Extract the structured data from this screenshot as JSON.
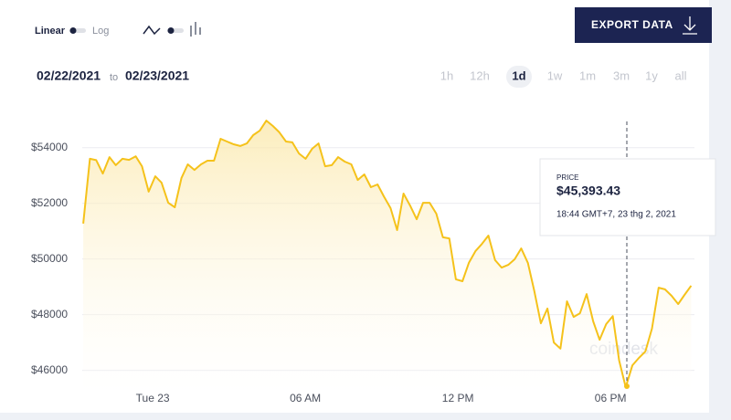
{
  "controls": {
    "scale_linear": "Linear",
    "scale_log": "Log",
    "export": "EXPORT DATA",
    "date_from": "02/22/2021",
    "date_sep": "to",
    "date_to": "02/23/2021",
    "ranges": [
      "1h",
      "12h",
      "1d",
      "1w",
      "1m",
      "3m",
      "1y",
      "all"
    ],
    "selected_range": 2
  },
  "chart_data": {
    "type": "line",
    "log_scale": false,
    "grid": true,
    "color": "#f5c21b",
    "x": [
      -2.73,
      -2.47,
      -2.22,
      -1.96,
      -1.7,
      -1.45,
      -1.19,
      -0.93,
      -0.67,
      -0.42,
      -0.16,
      0.1,
      0.35,
      0.61,
      0.87,
      1.13,
      1.38,
      1.64,
      1.9,
      2.15,
      2.41,
      2.67,
      2.92,
      3.18,
      3.44,
      3.7,
      3.95,
      4.21,
      4.47,
      4.72,
      4.98,
      5.24,
      5.49,
      5.75,
      6.01,
      6.27,
      6.52,
      6.78,
      7.04,
      7.29,
      7.55,
      7.81,
      8.06,
      8.32,
      8.58,
      8.84,
      9.09,
      9.35,
      9.61,
      9.86,
      10.12,
      10.38,
      10.63,
      10.89,
      11.15,
      11.41,
      11.66,
      11.92,
      12.18,
      12.43,
      12.69,
      12.95,
      13.2,
      13.46,
      13.72,
      13.98,
      14.23,
      14.49,
      14.75,
      15.0,
      15.26,
      15.52,
      15.77,
      16.03,
      16.29,
      16.55,
      16.8,
      17.06,
      17.32,
      17.57,
      17.83,
      18.09,
      18.34,
      18.6,
      18.86,
      19.12,
      19.37,
      19.63,
      19.89,
      20.14,
      20.4,
      20.66,
      20.91,
      21.17
    ],
    "values": [
      51270,
      53600,
      53550,
      53070,
      53660,
      53370,
      53600,
      53560,
      53690,
      53330,
      52420,
      52970,
      52740,
      52020,
      51860,
      52910,
      53400,
      53200,
      53400,
      53530,
      53530,
      54320,
      54220,
      54120,
      54060,
      54150,
      54450,
      54610,
      54970,
      54780,
      54550,
      54220,
      54190,
      53790,
      53600,
      53960,
      54150,
      53330,
      53370,
      53660,
      53500,
      53400,
      52840,
      53040,
      52580,
      52680,
      52250,
      51830,
      51040,
      52350,
      51920,
      51430,
      52020,
      52020,
      51630,
      50780,
      50740,
      49270,
      49200,
      49860,
      50280,
      50550,
      50840,
      49960,
      49690,
      49790,
      49990,
      50380,
      49860,
      48870,
      47690,
      48220,
      47000,
      46780,
      48480,
      47920,
      48050,
      48740,
      47760,
      47100,
      47660,
      47950,
      46350,
      45393,
      46180,
      46450,
      46680,
      47500,
      48970,
      48910,
      48680,
      48380,
      48710,
      49040
    ],
    "xlim": [
      -2.77,
      21.3
    ],
    "xticks": [
      {
        "value": 0,
        "label": "Tue 23"
      },
      {
        "value": 6,
        "label": "06 AM"
      },
      {
        "value": 12,
        "label": "12 PM"
      },
      {
        "value": 18,
        "label": "06 PM"
      }
    ],
    "ylim": [
      45200,
      55860
    ],
    "yticks": [
      {
        "value": 46000,
        "label": "$46000"
      },
      {
        "value": 48000,
        "label": "$48000"
      },
      {
        "value": 50000,
        "label": "$50000"
      },
      {
        "value": 52000,
        "label": "$52000"
      },
      {
        "value": 54000,
        "label": "$54000"
      }
    ],
    "tooltip": {
      "label": "PRICE",
      "price": "$45,393.43",
      "time": "18:44 GMT+7, 23 thg 2, 2021"
    },
    "watermark": "coindesk"
  }
}
